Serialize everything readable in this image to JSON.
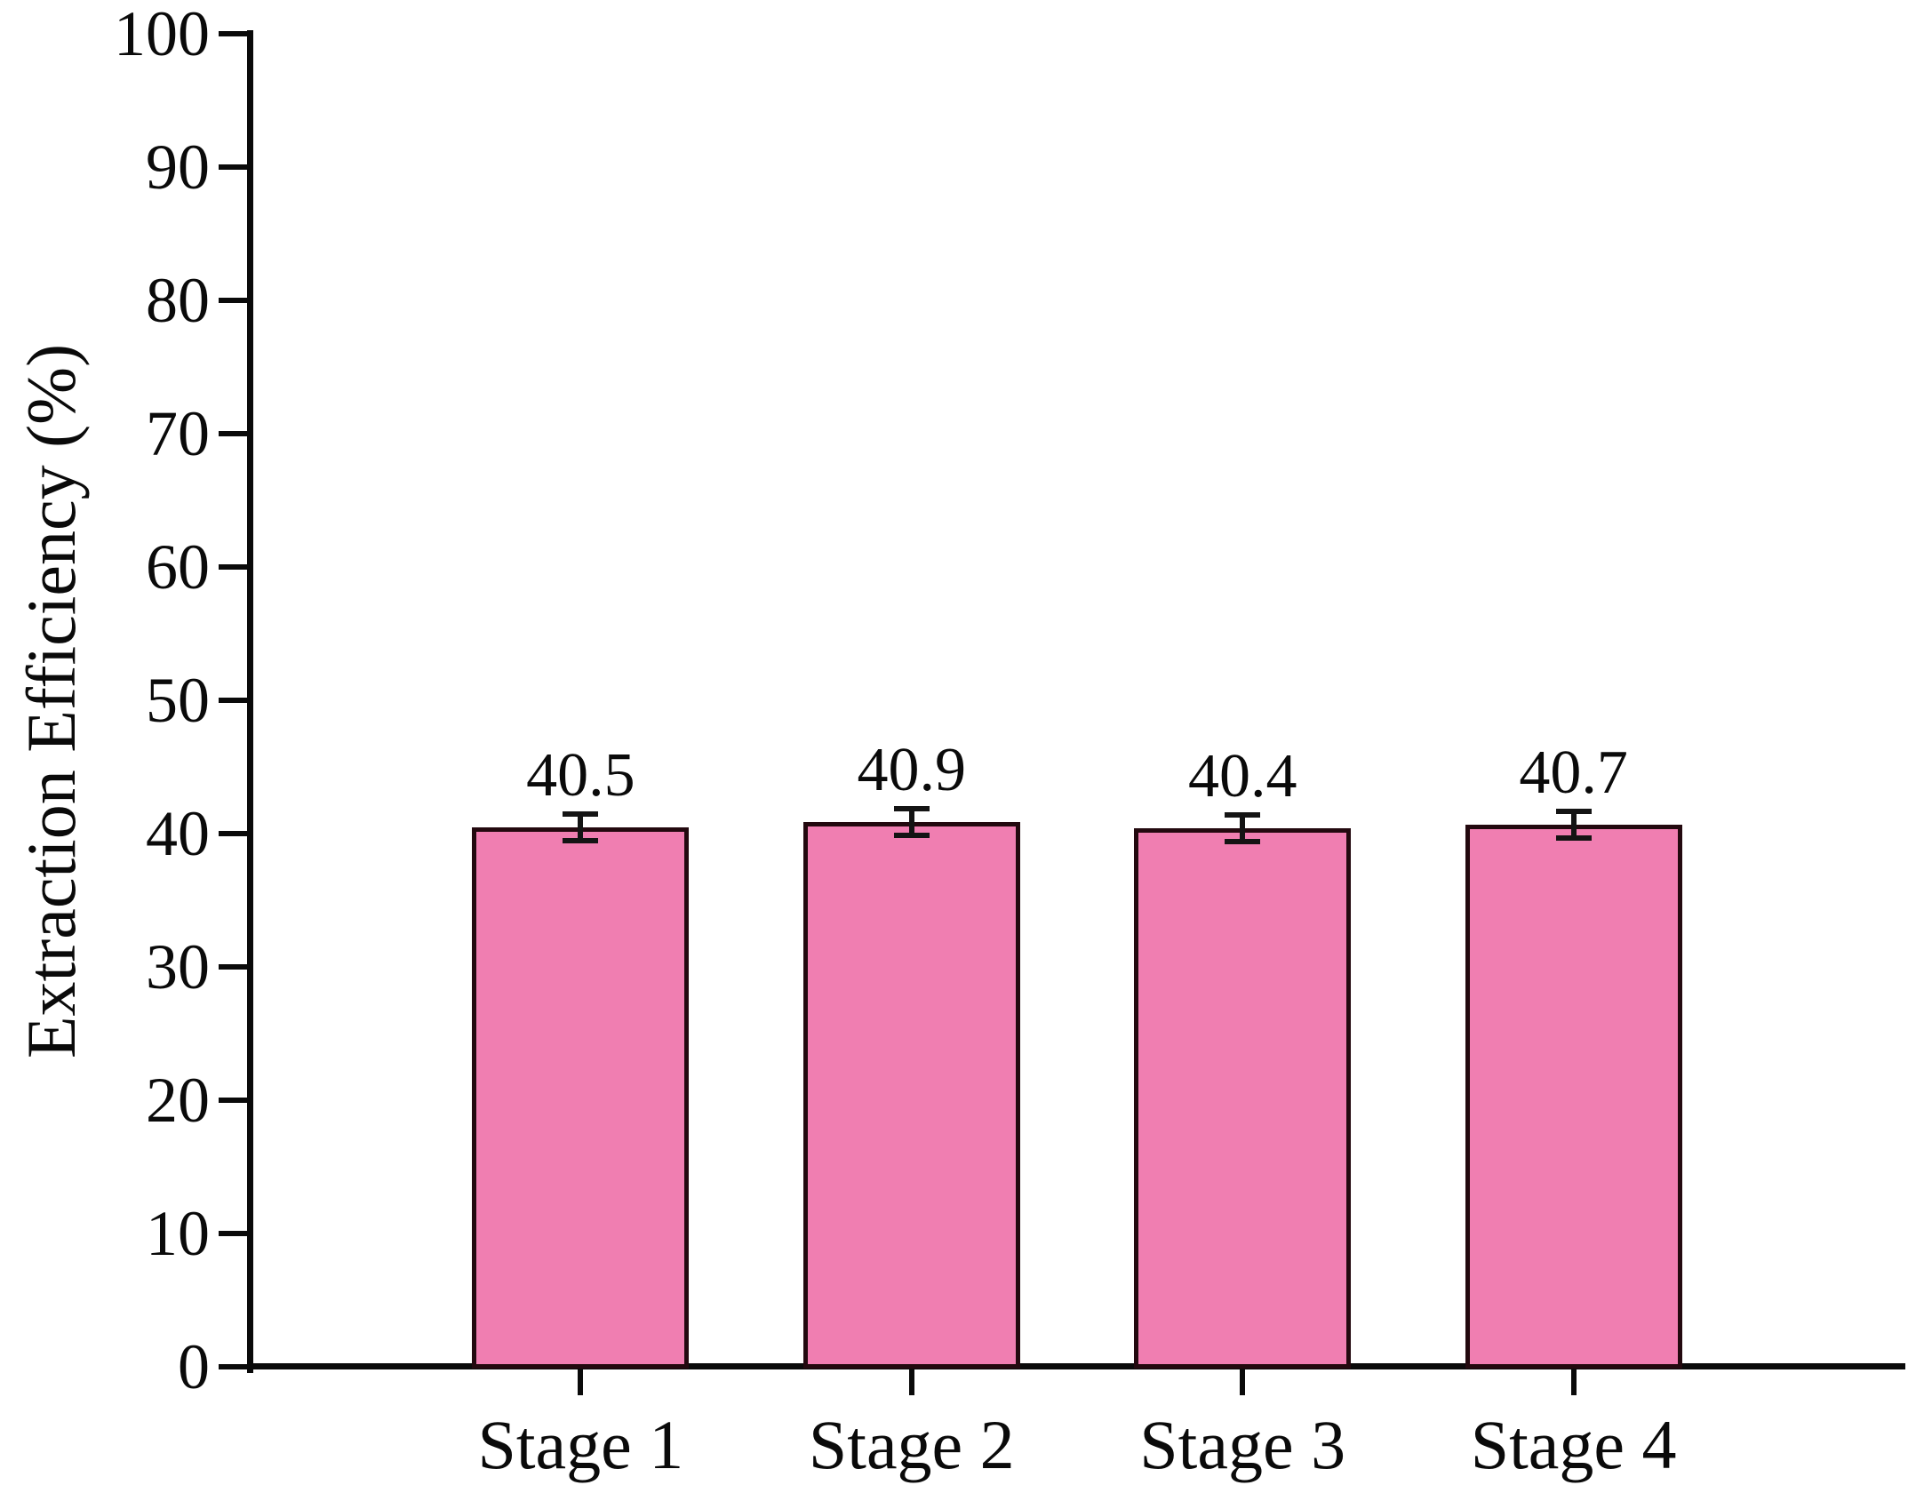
{
  "figure": {
    "background": "#ffffff"
  },
  "chart_data": {
    "type": "bar",
    "title": "",
    "xlabel": "",
    "ylabel": "Extraction Efficiency (%)",
    "categories": [
      "Stage 1",
      "Stage 2",
      "Stage 3",
      "Stage 4"
    ],
    "values": [
      40.5,
      40.9,
      40.4,
      40.7
    ],
    "value_labels": [
      "40.5",
      "40.9",
      "40.4",
      "40.7"
    ],
    "error_bars": [
      1.0,
      1.0,
      1.0,
      1.0
    ],
    "ylim": [
      0,
      100
    ],
    "yticks": [
      0,
      10,
      20,
      30,
      40,
      50,
      60,
      70,
      80,
      90,
      100
    ],
    "ytick_labels": [
      "0",
      "10",
      "20",
      "30",
      "40",
      "50",
      "60",
      "70",
      "80",
      "90",
      "100"
    ],
    "grid": false,
    "legend": null,
    "layout_hints": {
      "bar_label_position": "above-error-bar",
      "tick_direction": "out"
    },
    "colors": {
      "bar_fill": "#F07EB1",
      "bar_edge": "#23090F",
      "axis": "#0a0a0a",
      "text": "#0a0a0a",
      "error_bar": "#141414"
    }
  }
}
